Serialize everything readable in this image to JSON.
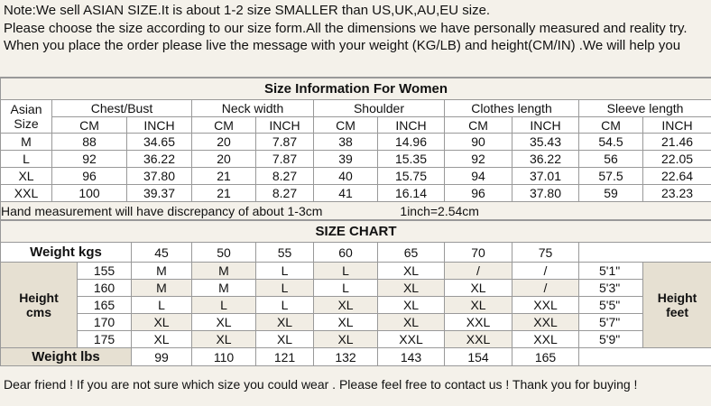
{
  "notice": [
    "Note:We sell ASIAN SIZE.It is about 1-2 size SMALLER than US,UK,AU,EU size.",
    "Please choose the size according to our size form.All the dimensions we have personally measured and reality try.",
    "When you place the order please live the message with your weight (KG/LB) and height(CM/IN) .We will help you"
  ],
  "women_table": {
    "title": "Size Information For Women",
    "size_label": "Asian Size",
    "measures": [
      "Chest/Bust",
      "Neck width",
      "Shoulder",
      "Clothes length",
      "Sleeve length"
    ],
    "units": [
      "CM",
      "INCH"
    ],
    "rows": [
      [
        "M",
        "88",
        "34.65",
        "20",
        "7.87",
        "38",
        "14.96",
        "90",
        "35.43",
        "54.5",
        "21.46"
      ],
      [
        "L",
        "92",
        "36.22",
        "20",
        "7.87",
        "39",
        "15.35",
        "92",
        "36.22",
        "56",
        "22.05"
      ],
      [
        "XL",
        "96",
        "37.80",
        "21",
        "8.27",
        "40",
        "15.75",
        "94",
        "37.01",
        "57.5",
        "22.64"
      ],
      [
        "XXL",
        "100",
        "39.37",
        "21",
        "8.27",
        "41",
        "16.14",
        "96",
        "37.80",
        "59",
        "23.23"
      ]
    ]
  },
  "note": [
    "Hand measurement will have discrepancy of about 1-3cm",
    "1inch=2.54cm"
  ],
  "size_chart": {
    "title": "SIZE CHART",
    "weight_kgs_label": "Weight  kgs",
    "weights_kg": [
      "45",
      "50",
      "55",
      "60",
      "65",
      "70",
      "75"
    ],
    "height_cms_label": "Height cms",
    "height_feet_label": "Height feet",
    "rows": [
      {
        "cm": "155",
        "sizes": [
          "M",
          "M",
          "L",
          "L",
          "XL",
          "/",
          "/"
        ],
        "feet": "5'1\""
      },
      {
        "cm": "160",
        "sizes": [
          "M",
          "M",
          "L",
          "L",
          "XL",
          "XL",
          "/"
        ],
        "feet": "5'3\""
      },
      {
        "cm": "165",
        "sizes": [
          "L",
          "L",
          "L",
          "XL",
          "XL",
          "XL",
          "XXL"
        ],
        "feet": "5'5\""
      },
      {
        "cm": "170",
        "sizes": [
          "XL",
          "XL",
          "XL",
          "XL",
          "XL",
          "XXL",
          "XXL"
        ],
        "feet": "5'7\""
      },
      {
        "cm": "175",
        "sizes": [
          "XL",
          "XL",
          "XL",
          "XL",
          "XXL",
          "XXL",
          "XXL"
        ],
        "feet": "5'9\""
      }
    ],
    "weight_lbs_label": "Weight lbs",
    "weights_lbs": [
      "99",
      "110",
      "121",
      "132",
      "143",
      "154",
      "165"
    ]
  },
  "footer": "Dear friend ! If you are not sure which size you could wear . Please feel free to contact us ! Thank you for buying !"
}
